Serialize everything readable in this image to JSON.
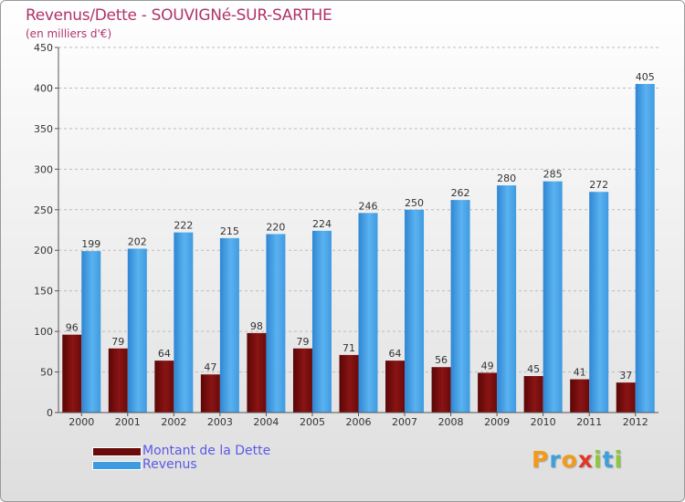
{
  "chart_data": {
    "type": "bar",
    "title": "Revenus/Dette - SOUVIGNé-SUR-SARTHE",
    "subtitle": "(en milliers d'€)",
    "categories": [
      "2000",
      "2001",
      "2002",
      "2003",
      "2004",
      "2005",
      "2006",
      "2007",
      "2008",
      "2009",
      "2010",
      "2011",
      "2012"
    ],
    "series": [
      {
        "name": "Montant de la Dette",
        "color": "#7a0e0e",
        "values": [
          96,
          79,
          64,
          47,
          98,
          79,
          71,
          64,
          56,
          49,
          45,
          41,
          37
        ]
      },
      {
        "name": "Revenus",
        "color": "#3f9be0",
        "values": [
          199,
          202,
          222,
          215,
          220,
          224,
          246,
          250,
          262,
          280,
          285,
          272,
          405
        ]
      }
    ],
    "ylim": [
      0,
      450
    ],
    "yticks": [
      0,
      50,
      100,
      150,
      200,
      250,
      300,
      350,
      400,
      450
    ],
    "grid": true,
    "legend": "bottom-left"
  },
  "logo": {
    "text": "Proxiti",
    "letters": [
      "P",
      "r",
      "o",
      "x",
      "i",
      "t",
      "i"
    ],
    "colors": [
      "#f29a1a",
      "#3da0dc",
      "#f29a1a",
      "#e0392a",
      "#8dc63f",
      "#3da0dc",
      "#8dc63f"
    ]
  }
}
